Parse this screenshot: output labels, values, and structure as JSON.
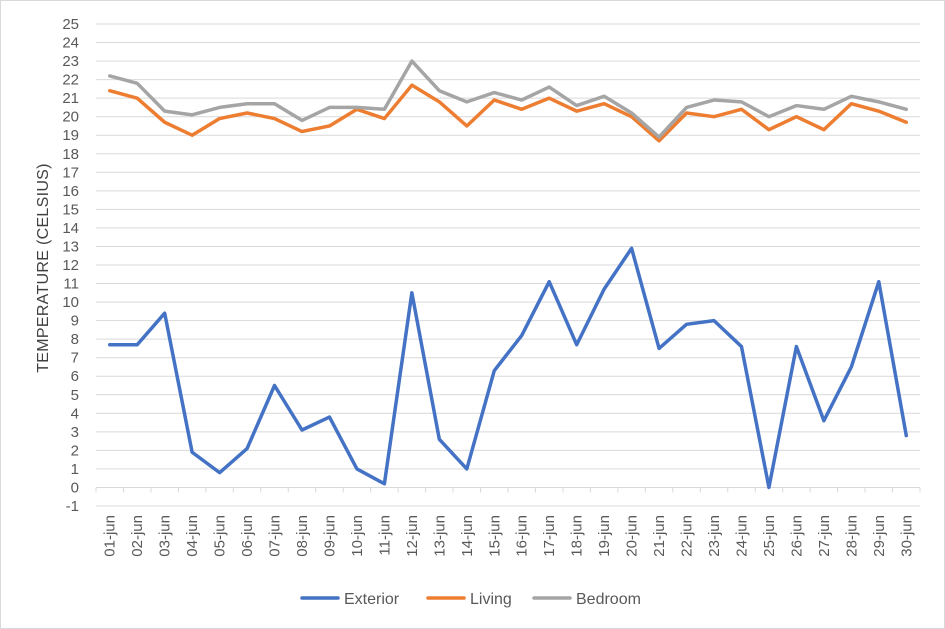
{
  "chart_data": {
    "type": "line",
    "title": "",
    "xlabel": "",
    "ylabel": "TEMPERATURE (CELSIUS)",
    "ylim": [
      -1,
      25
    ],
    "ytick_step": 1,
    "grid": true,
    "legend_position": "bottom",
    "categories": [
      "01-jun",
      "02-jun",
      "03-jun",
      "04-jun",
      "05-jun",
      "06-jun",
      "07-jun",
      "08-jun",
      "09-jun",
      "10-jun",
      "11-jun",
      "12-jun",
      "13-jun",
      "14-jun",
      "15-jun",
      "16-jun",
      "17-jun",
      "18-jun",
      "19-jun",
      "20-jun",
      "21-jun",
      "22-jun",
      "23-jun",
      "24-jun",
      "25-jun",
      "26-jun",
      "27-jun",
      "28-jun",
      "29-jun",
      "30-jun"
    ],
    "series": [
      {
        "name": "Exterior",
        "color": "#4472c4",
        "values": [
          7.7,
          7.7,
          9.4,
          1.9,
          0.8,
          2.1,
          5.5,
          3.1,
          3.8,
          1.0,
          0.2,
          10.5,
          2.6,
          1.0,
          6.3,
          8.2,
          11.1,
          7.7,
          10.7,
          12.9,
          7.5,
          8.8,
          9.0,
          7.6,
          0.0,
          7.6,
          3.6,
          6.5,
          11.1,
          2.8
        ]
      },
      {
        "name": "Living",
        "color": "#ed7d31",
        "values": [
          21.4,
          21.0,
          19.7,
          19.0,
          19.9,
          20.2,
          19.9,
          19.2,
          19.5,
          20.4,
          19.9,
          21.7,
          20.8,
          19.5,
          20.9,
          20.4,
          21.0,
          20.3,
          20.7,
          20.0,
          18.7,
          20.2,
          20.0,
          20.4,
          19.3,
          20.0,
          19.3,
          20.7,
          20.3,
          19.7
        ]
      },
      {
        "name": "Bedroom",
        "color": "#a5a5a5",
        "values": [
          22.2,
          21.8,
          20.3,
          20.1,
          20.5,
          20.7,
          20.7,
          19.8,
          20.5,
          20.5,
          20.4,
          23.0,
          21.4,
          20.8,
          21.3,
          20.9,
          21.6,
          20.6,
          21.1,
          20.2,
          18.9,
          20.5,
          20.9,
          20.8,
          20.0,
          20.6,
          20.4,
          21.1,
          20.8,
          20.4
        ]
      }
    ]
  }
}
